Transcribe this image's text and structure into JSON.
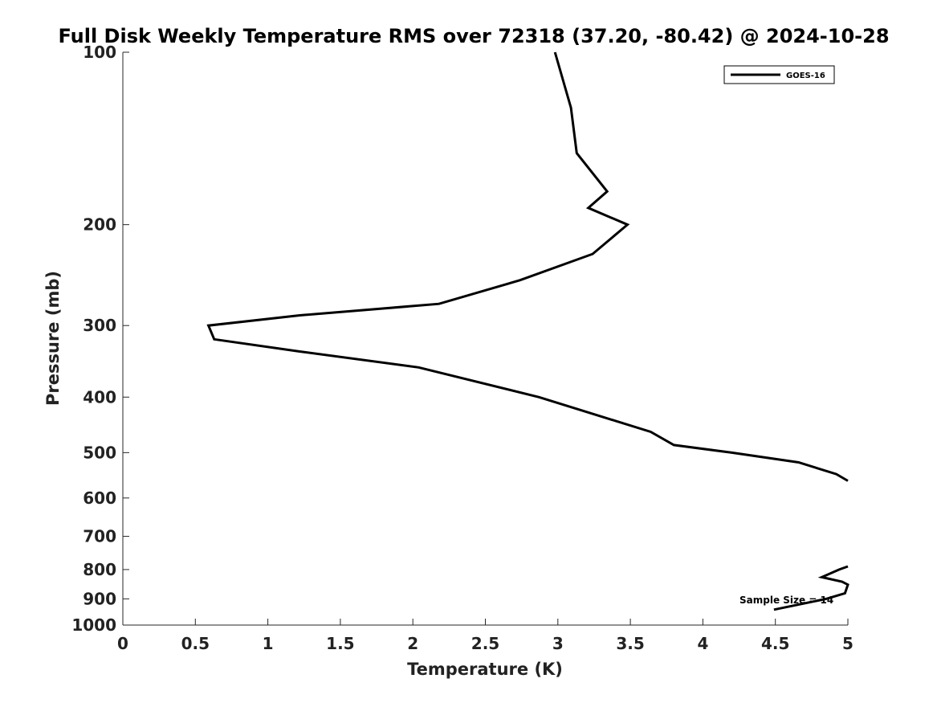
{
  "chart_data": {
    "type": "line",
    "title": "Full Disk Weekly Temperature RMS over 72318 (37.20, -80.42) @ 2024-10-28",
    "xlabel": "Temperature (K)",
    "ylabel": "Pressure (mb)",
    "xlim": [
      0,
      5
    ],
    "ylim": [
      100,
      1000
    ],
    "y_scale": "log",
    "y_reversed": true,
    "x_ticks": [
      0,
      0.5,
      1,
      1.5,
      2,
      2.5,
      3,
      3.5,
      4,
      4.5,
      5
    ],
    "x_tick_labels": [
      "0",
      "0.5",
      "1",
      "1.5",
      "2",
      "2.5",
      "3",
      "3.5",
      "4",
      "4.5",
      "5"
    ],
    "y_ticks": [
      100,
      200,
      300,
      400,
      500,
      600,
      700,
      800,
      900,
      1000
    ],
    "y_tick_labels": [
      "100",
      "200",
      "300",
      "400",
      "500",
      "600",
      "700",
      "800",
      "900",
      "1000"
    ],
    "grid": false,
    "legend_position": "top-right",
    "series": [
      {
        "name": "GOES-16",
        "color": "#000000",
        "segments": [
          [
            {
              "x": 2.98,
              "y": 100
            },
            {
              "x": 3.09,
              "y": 125
            },
            {
              "x": 3.13,
              "y": 150
            },
            {
              "x": 3.34,
              "y": 175
            },
            {
              "x": 3.21,
              "y": 187
            },
            {
              "x": 3.48,
              "y": 200
            },
            {
              "x": 3.24,
              "y": 225
            },
            {
              "x": 2.74,
              "y": 250
            },
            {
              "x": 2.18,
              "y": 275
            },
            {
              "x": 1.22,
              "y": 288
            },
            {
              "x": 0.59,
              "y": 300
            },
            {
              "x": 0.63,
              "y": 317
            },
            {
              "x": 1.22,
              "y": 333
            },
            {
              "x": 2.04,
              "y": 355
            },
            {
              "x": 2.87,
              "y": 400
            },
            {
              "x": 3.64,
              "y": 460
            },
            {
              "x": 3.8,
              "y": 485
            },
            {
              "x": 4.2,
              "y": 500
            },
            {
              "x": 4.66,
              "y": 520
            },
            {
              "x": 4.92,
              "y": 545
            },
            {
              "x": 5.0,
              "y": 560
            }
          ],
          [
            {
              "x": 5.0,
              "y": 790
            },
            {
              "x": 4.94,
              "y": 800
            },
            {
              "x": 4.82,
              "y": 825
            },
            {
              "x": 4.96,
              "y": 840
            },
            {
              "x": 5.0,
              "y": 850
            },
            {
              "x": 4.98,
              "y": 880
            },
            {
              "x": 4.85,
              "y": 900
            },
            {
              "x": 4.49,
              "y": 940
            }
          ]
        ]
      }
    ],
    "annotations": [
      {
        "text": "Sample Size = 14",
        "x": 4.8,
        "y": 900
      }
    ]
  }
}
